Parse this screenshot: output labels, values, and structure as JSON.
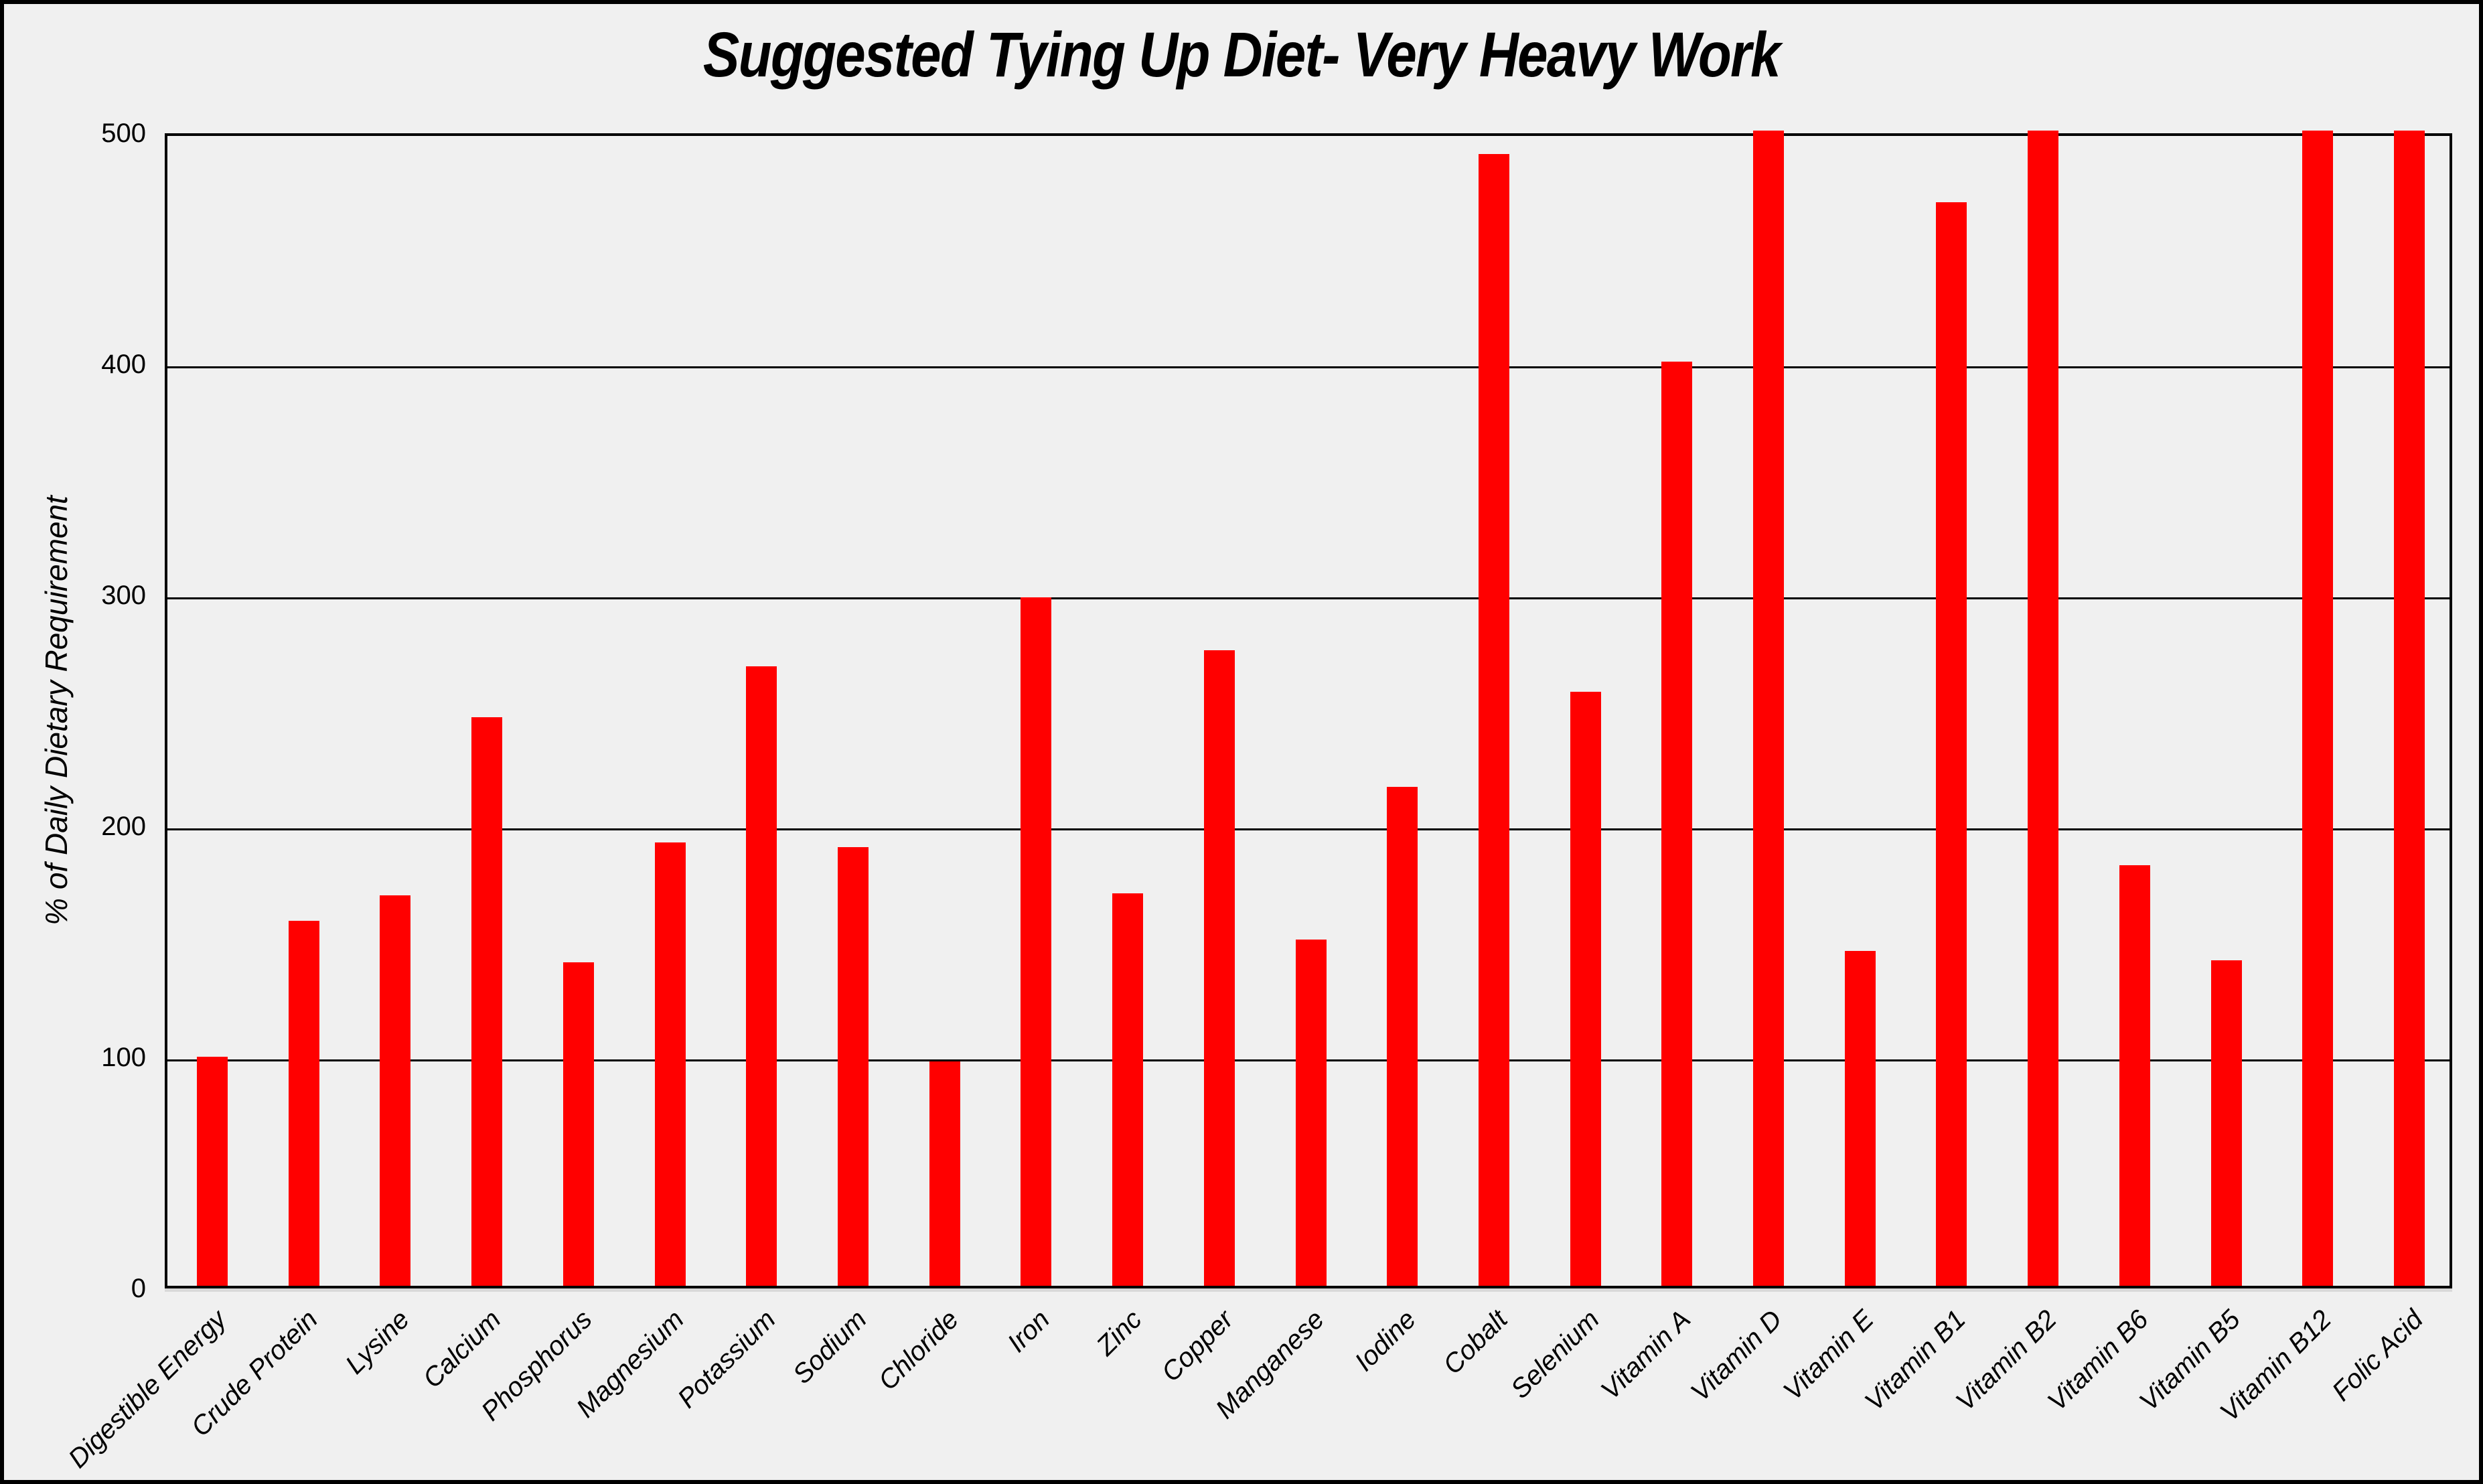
{
  "title": "Suggested Tying Up Diet- Very Heavy Work",
  "colors": {
    "bar": "#ff0000",
    "background": "#f0f0f0",
    "line": "#000000",
    "axis_shadow": "#d9d9d9"
  },
  "chart_data": {
    "type": "bar",
    "title": "Suggested Tying Up Diet- Very Heavy Work",
    "xlabel": "",
    "ylabel": "% of Daily Dietary Requirement",
    "ylim": [
      0,
      500
    ],
    "yticks": [
      0,
      100,
      200,
      300,
      400,
      500
    ],
    "grid": true,
    "legend_position": "none",
    "bar_color": "#ff0000",
    "categories": [
      "Digestible Energy",
      "Crude Protein",
      "Lysine",
      "Calcium",
      "Phosphorus",
      "Magnesium",
      "Potassium",
      "Sodium",
      "Chloride",
      "Iron",
      "Zinc",
      "Copper",
      "Manganese",
      "Iodine",
      "Cobalt",
      "Selenium",
      "Vitamin A",
      "Vitamin D",
      "Vitamin E",
      "Vitamin B1",
      "Vitamin B2",
      "Vitamin B6",
      "Vitamin B5",
      "Vitamin B12",
      "Folic Acid"
    ],
    "values": [
      99,
      158,
      169,
      246,
      140,
      192,
      268,
      190,
      97,
      298,
      170,
      275,
      150,
      216,
      490,
      257,
      400,
      500,
      145,
      469,
      500,
      182,
      141,
      500,
      500
    ]
  }
}
